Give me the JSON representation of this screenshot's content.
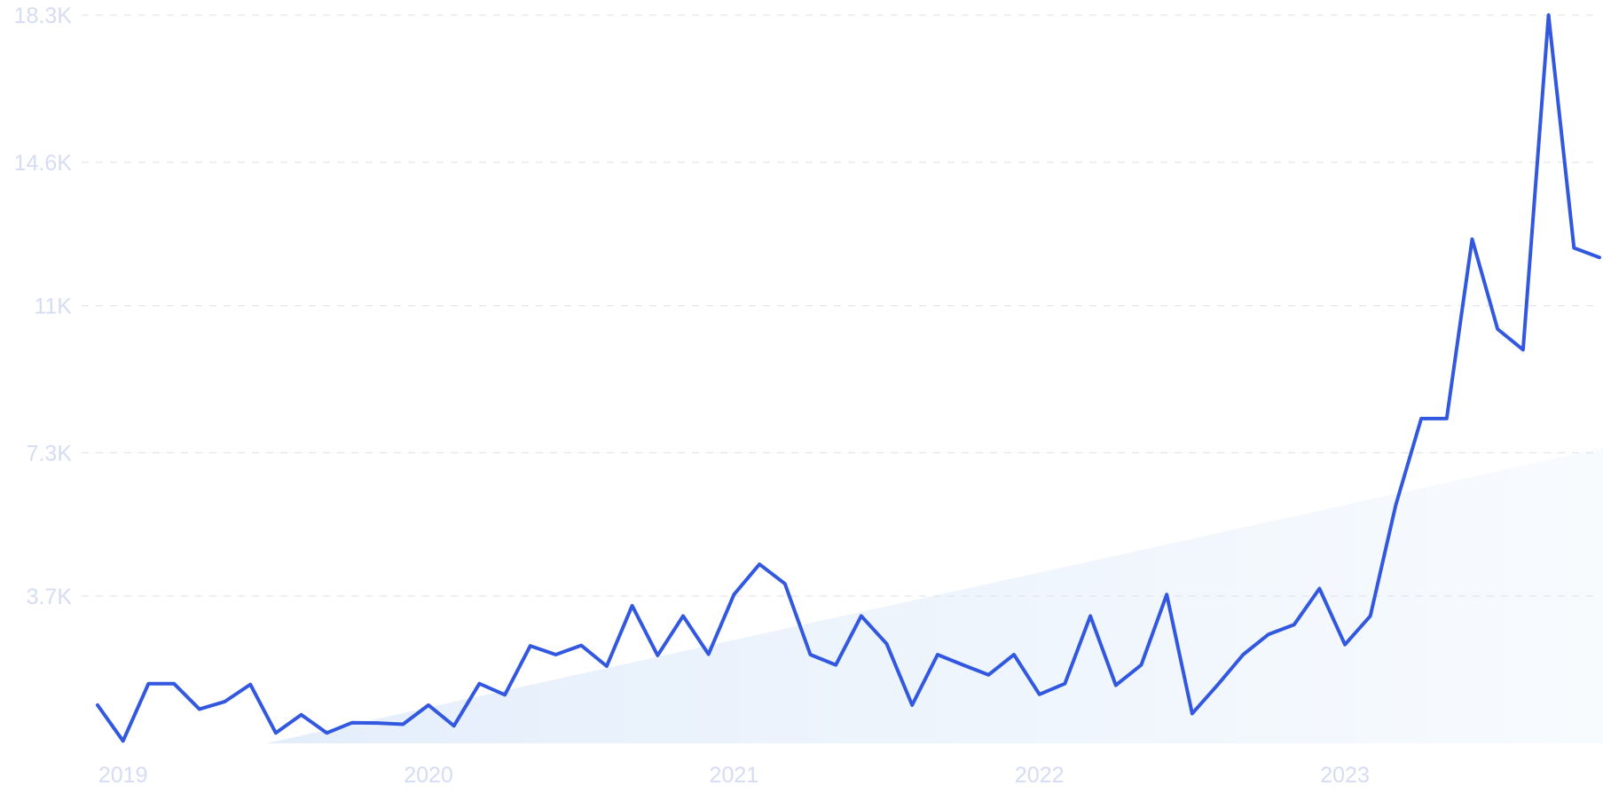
{
  "chart_data": {
    "type": "line",
    "title": "",
    "xlabel": "",
    "ylabel": "",
    "grid": true,
    "legend": "none",
    "ylim": [
      0,
      18300
    ],
    "xlim": [
      "2018-12",
      "2023-11"
    ],
    "y_ticks": [
      {
        "value": 3700,
        "label": "3.7K"
      },
      {
        "value": 7300,
        "label": "7.3K"
      },
      {
        "value": 11000,
        "label": "11K"
      },
      {
        "value": 14600,
        "label": "14.6K"
      },
      {
        "value": 18300,
        "label": "18.3K"
      }
    ],
    "x_ticks": [
      {
        "date": "2019-01",
        "label": "2019"
      },
      {
        "date": "2020-01",
        "label": "2020"
      },
      {
        "date": "2021-01",
        "label": "2021"
      },
      {
        "date": "2022-01",
        "label": "2022"
      },
      {
        "date": "2023-01",
        "label": "2023"
      }
    ],
    "series": [
      {
        "color": "#3358e0",
        "points": [
          [
            "2018-12",
            960
          ],
          [
            "2019-01",
            60
          ],
          [
            "2019-02",
            1500
          ],
          [
            "2019-03",
            1500
          ],
          [
            "2019-04",
            860
          ],
          [
            "2019-05",
            1050
          ],
          [
            "2019-06",
            1480
          ],
          [
            "2019-07",
            260
          ],
          [
            "2019-08",
            720
          ],
          [
            "2019-09",
            260
          ],
          [
            "2019-10",
            520
          ],
          [
            "2019-11",
            510
          ],
          [
            "2019-12",
            480
          ],
          [
            "2020-01",
            960
          ],
          [
            "2020-02",
            440
          ],
          [
            "2020-03",
            1500
          ],
          [
            "2020-04",
            1220
          ],
          [
            "2020-05",
            2450
          ],
          [
            "2020-06",
            2230
          ],
          [
            "2020-07",
            2460
          ],
          [
            "2020-08",
            1940
          ],
          [
            "2020-09",
            3460
          ],
          [
            "2020-10",
            2210
          ],
          [
            "2020-11",
            3200
          ],
          [
            "2020-12",
            2240
          ],
          [
            "2021-01",
            3740
          ],
          [
            "2021-02",
            4500
          ],
          [
            "2021-03",
            4010
          ],
          [
            "2021-04",
            2230
          ],
          [
            "2021-05",
            1970
          ],
          [
            "2021-06",
            3200
          ],
          [
            "2021-07",
            2500
          ],
          [
            "2021-08",
            960
          ],
          [
            "2021-09",
            2230
          ],
          [
            "2021-10",
            1970
          ],
          [
            "2021-11",
            1720
          ],
          [
            "2021-12",
            2230
          ],
          [
            "2022-01",
            1230
          ],
          [
            "2022-02",
            1500
          ],
          [
            "2022-03",
            3200
          ],
          [
            "2022-04",
            1460
          ],
          [
            "2022-05",
            1970
          ],
          [
            "2022-06",
            3740
          ],
          [
            "2022-07",
            750
          ],
          [
            "2022-08",
            1470
          ],
          [
            "2022-09",
            2230
          ],
          [
            "2022-10",
            2740
          ],
          [
            "2022-11",
            2980
          ],
          [
            "2022-12",
            3890
          ],
          [
            "2023-01",
            2480
          ],
          [
            "2023-02",
            3200
          ],
          [
            "2023-03",
            5990
          ],
          [
            "2023-04",
            8160
          ],
          [
            "2023-05",
            8160
          ],
          [
            "2023-06",
            12670
          ],
          [
            "2023-07",
            10410
          ],
          [
            "2023-08",
            9890
          ],
          [
            "2023-09",
            18300
          ],
          [
            "2023-10",
            12450
          ],
          [
            "2023-11",
            12210
          ]
        ]
      }
    ]
  }
}
